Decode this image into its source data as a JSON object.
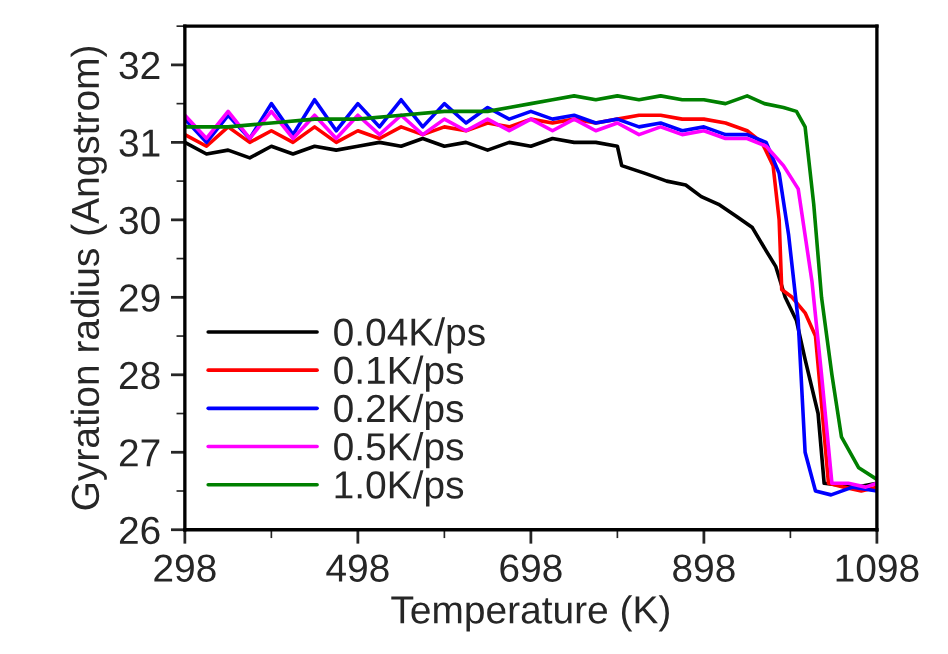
{
  "chart_data": {
    "type": "line",
    "xlabel": "Temperature (K)",
    "ylabel": "Gyration radius (Angstrom)",
    "xlim": [
      298,
      1098
    ],
    "xticks": [
      298,
      498,
      698,
      898,
      1098
    ],
    "ylim": [
      26,
      32.5
    ],
    "yticks": [
      26,
      27,
      28,
      29,
      30,
      31,
      32
    ],
    "grid": false,
    "legend": "bottom left",
    "marker": "none",
    "line_style": "solid",
    "series": [
      {
        "name": "0.04K/ps",
        "color": "#000000",
        "x": [
          298,
          323,
          348,
          373,
          398,
          423,
          448,
          473,
          498,
          523,
          548,
          573,
          598,
          623,
          648,
          673,
          698,
          723,
          748,
          773,
          798,
          803,
          830,
          855,
          877,
          895,
          915,
          935,
          954,
          970,
          981,
          992,
          1005,
          1015,
          1030,
          1037,
          1075,
          1098
        ],
        "values": [
          31.0,
          30.85,
          30.9,
          30.8,
          30.95,
          30.85,
          30.95,
          30.9,
          30.95,
          31.0,
          30.95,
          31.05,
          30.95,
          31.0,
          30.9,
          31.0,
          30.95,
          31.05,
          31.0,
          31.0,
          30.95,
          30.7,
          30.6,
          30.5,
          30.45,
          30.3,
          30.2,
          30.05,
          29.9,
          29.6,
          29.4,
          29.0,
          28.7,
          28.2,
          27.5,
          26.6,
          26.55,
          26.6
        ]
      },
      {
        "name": "0.1K/ps",
        "color": "#ff0000",
        "x": [
          298,
          323,
          348,
          373,
          398,
          423,
          448,
          473,
          498,
          523,
          548,
          573,
          598,
          623,
          648,
          673,
          698,
          723,
          748,
          773,
          798,
          823,
          848,
          873,
          898,
          923,
          948,
          965,
          978,
          985,
          988,
          1000,
          1015,
          1027,
          1035,
          1042,
          1060,
          1080,
          1098
        ],
        "values": [
          31.1,
          30.95,
          31.2,
          31.0,
          31.15,
          31.0,
          31.2,
          31.0,
          31.15,
          31.05,
          31.2,
          31.1,
          31.2,
          31.15,
          31.25,
          31.2,
          31.3,
          31.25,
          31.3,
          31.25,
          31.3,
          31.35,
          31.35,
          31.3,
          31.3,
          31.25,
          31.15,
          31.0,
          30.7,
          30.0,
          29.1,
          29.0,
          28.8,
          28.5,
          27.5,
          26.6,
          26.55,
          26.5,
          26.55
        ]
      },
      {
        "name": "0.2K/ps",
        "color": "#0000ff",
        "x": [
          298,
          323,
          348,
          373,
          398,
          423,
          448,
          473,
          498,
          523,
          548,
          573,
          598,
          623,
          648,
          673,
          698,
          723,
          748,
          773,
          798,
          823,
          848,
          873,
          898,
          923,
          948,
          970,
          985,
          996,
          1007,
          1015,
          1027,
          1045,
          1070,
          1098
        ],
        "values": [
          31.3,
          31.0,
          31.35,
          31.05,
          31.5,
          31.1,
          31.55,
          31.15,
          31.5,
          31.2,
          31.55,
          31.2,
          31.5,
          31.25,
          31.45,
          31.3,
          31.4,
          31.3,
          31.35,
          31.25,
          31.3,
          31.2,
          31.25,
          31.15,
          31.2,
          31.1,
          31.1,
          31.0,
          30.6,
          29.8,
          28.7,
          27.0,
          26.5,
          26.45,
          26.55,
          26.5
        ]
      },
      {
        "name": "0.5K/ps",
        "color": "#ff00ff",
        "x": [
          298,
          323,
          348,
          373,
          398,
          423,
          448,
          473,
          498,
          523,
          548,
          573,
          598,
          623,
          648,
          673,
          698,
          723,
          748,
          773,
          798,
          823,
          848,
          873,
          898,
          923,
          948,
          970,
          990,
          1007,
          1023,
          1034,
          1046,
          1065,
          1085,
          1098
        ],
        "values": [
          31.35,
          31.05,
          31.4,
          31.05,
          31.4,
          31.05,
          31.35,
          31.05,
          31.35,
          31.1,
          31.35,
          31.1,
          31.3,
          31.15,
          31.3,
          31.15,
          31.3,
          31.15,
          31.3,
          31.15,
          31.25,
          31.1,
          31.2,
          31.1,
          31.15,
          31.05,
          31.05,
          30.95,
          30.7,
          30.4,
          29.2,
          28.0,
          26.6,
          26.6,
          26.55,
          26.6
        ]
      },
      {
        "name": "1.0K/ps",
        "color": "#008000",
        "x": [
          298,
          348,
          398,
          448,
          498,
          548,
          598,
          648,
          673,
          698,
          723,
          748,
          773,
          798,
          823,
          848,
          873,
          898,
          923,
          948,
          968,
          990,
          1005,
          1015,
          1025,
          1034,
          1046,
          1057,
          1077,
          1098
        ],
        "values": [
          31.2,
          31.2,
          31.25,
          31.3,
          31.3,
          31.35,
          31.4,
          31.4,
          31.45,
          31.5,
          31.55,
          31.6,
          31.55,
          31.6,
          31.55,
          31.6,
          31.55,
          31.55,
          31.5,
          31.6,
          31.5,
          31.45,
          31.4,
          31.2,
          30.2,
          29.0,
          28.0,
          27.2,
          26.8,
          26.65
        ]
      }
    ]
  }
}
